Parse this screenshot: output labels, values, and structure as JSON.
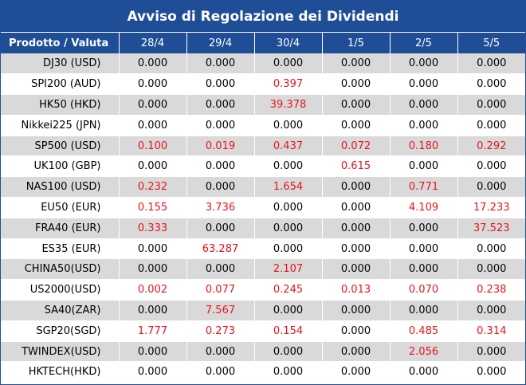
{
  "title": "Avviso di Regolazione dei Dividendi",
  "header": {
    "product_label": "Prodotto / Valuta",
    "dates": [
      "28/4",
      "29/4",
      "30/4",
      "1/5",
      "2/5",
      "5/5"
    ]
  },
  "rows": [
    {
      "product": "DJ30 (USD)",
      "values": [
        "0.000",
        "0.000",
        "0.000",
        "0.000",
        "0.000",
        "0.000"
      ]
    },
    {
      "product": "SPI200 (AUD)",
      "values": [
        "0.000",
        "0.000",
        "0.397",
        "0.000",
        "0.000",
        "0.000"
      ]
    },
    {
      "product": "HK50 (HKD)",
      "values": [
        "0.000",
        "0.000",
        "39.378",
        "0.000",
        "0.000",
        "0.000"
      ]
    },
    {
      "product": "Nikkei225 (JPN)",
      "values": [
        "0.000",
        "0.000",
        "0.000",
        "0.000",
        "0.000",
        "0.000"
      ]
    },
    {
      "product": "SP500 (USD)",
      "values": [
        "0.100",
        "0.019",
        "0.437",
        "0.072",
        "0.180",
        "0.292"
      ]
    },
    {
      "product": "UK100 (GBP)",
      "values": [
        "0.000",
        "0.000",
        "0.000",
        "0.615",
        "0.000",
        "0.000"
      ]
    },
    {
      "product": "NAS100 (USD)",
      "values": [
        "0.232",
        "0.000",
        "1.654",
        "0.000",
        "0.771",
        "0.000"
      ]
    },
    {
      "product": "EU50 (EUR)",
      "values": [
        "0.155",
        "3.736",
        "0.000",
        "0.000",
        "4.109",
        "17.233"
      ]
    },
    {
      "product": "FRA40 (EUR)",
      "values": [
        "0.333",
        "0.000",
        "0.000",
        "0.000",
        "0.000",
        "37.523"
      ]
    },
    {
      "product": "ES35 (EUR)",
      "values": [
        "0.000",
        "63.287",
        "0.000",
        "0.000",
        "0.000",
        "0.000"
      ]
    },
    {
      "product": "CHINA50(USD)",
      "values": [
        "0.000",
        "0.000",
        "2.107",
        "0.000",
        "0.000",
        "0.000"
      ]
    },
    {
      "product": "US2000(USD)",
      "values": [
        "0.002",
        "0.077",
        "0.245",
        "0.013",
        "0.070",
        "0.238"
      ]
    },
    {
      "product": "SA40(ZAR)",
      "values": [
        "0.000",
        "7.567",
        "0.000",
        "0.000",
        "0.000",
        "0.000"
      ]
    },
    {
      "product": "SGP20(SGD)",
      "values": [
        "1.777",
        "0.273",
        "0.154",
        "0.000",
        "0.485",
        "0.314"
      ]
    },
    {
      "product": "TWINDEX(USD)",
      "values": [
        "0.000",
        "0.000",
        "0.000",
        "0.000",
        "2.056",
        "0.000"
      ]
    },
    {
      "product": "HKTECH(HKD)",
      "values": [
        "0.000",
        "0.000",
        "0.000",
        "0.000",
        "0.000",
        "0.000"
      ]
    }
  ],
  "colors": {
    "header_bg": "#1f4e96",
    "header_text": "#ffffff",
    "row_shade": "#d9d9d9",
    "row_plain": "#ffffff",
    "nonzero_text": "#e8141e",
    "zero_text": "#000000"
  }
}
